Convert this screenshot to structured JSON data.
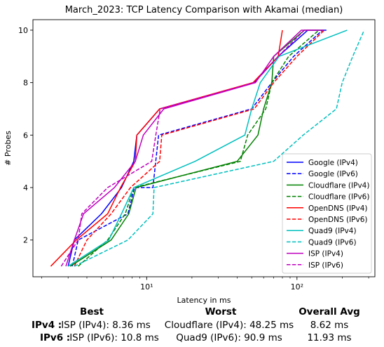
{
  "chart_data": {
    "type": "line",
    "title": "March_2023: TCP Latency Comparison with Akamai (median)",
    "xlabel": "Latency in ms",
    "ylabel": "# Probes",
    "xscale": "log",
    "xlim": [
      1.75,
      330
    ],
    "ylim": [
      0.6,
      10.4
    ],
    "xticks": [
      10,
      100
    ],
    "xtick_labels": [
      "10¹",
      "10²"
    ],
    "yticks": [
      2,
      4,
      6,
      8,
      10
    ],
    "ytick_labels": [
      "2",
      "4",
      "6",
      "8",
      "10"
    ],
    "grid": false,
    "legend_position": "lower right",
    "series": [
      {
        "name": "Google (IPv4)",
        "color": "#0000ff",
        "dash": "solid",
        "points": [
          [
            3.0,
            1
          ],
          [
            3.3,
            2
          ],
          [
            5.0,
            3
          ],
          [
            6.8,
            4
          ],
          [
            8.2,
            5
          ],
          [
            8.6,
            6
          ],
          [
            12.2,
            7
          ],
          [
            52,
            8
          ],
          [
            75,
            9
          ],
          [
            118,
            10
          ],
          [
            157,
            10
          ]
        ]
      },
      {
        "name": "Google (IPv6)",
        "color": "#0000ff",
        "dash": "dashed",
        "points": [
          [
            3.2,
            1
          ],
          [
            3.5,
            2
          ],
          [
            7.5,
            3
          ],
          [
            8.3,
            4
          ],
          [
            11,
            4
          ],
          [
            12,
            6
          ],
          [
            50,
            7
          ],
          [
            68,
            8
          ],
          [
            95,
            9
          ],
          [
            148,
            10
          ]
        ]
      },
      {
        "name": "Cloudflare (IPv4)",
        "color": "#008000",
        "dash": "solid",
        "points": [
          [
            3.1,
            1
          ],
          [
            5.8,
            2
          ],
          [
            7.6,
            3
          ],
          [
            8.5,
            4
          ],
          [
            40,
            5
          ],
          [
            55,
            6
          ],
          [
            60,
            7
          ],
          [
            68,
            8
          ],
          [
            70,
            9
          ],
          [
            112,
            10
          ],
          [
            150,
            10
          ]
        ]
      },
      {
        "name": "Cloudflare (IPv6)",
        "color": "#008000",
        "dash": "dashed",
        "points": [
          [
            3.5,
            1
          ],
          [
            5.5,
            2
          ],
          [
            7.2,
            3
          ],
          [
            8.2,
            4
          ],
          [
            42,
            5
          ],
          [
            47,
            6
          ],
          [
            62,
            7
          ],
          [
            68,
            8
          ],
          [
            88,
            9
          ],
          [
            140,
            10
          ]
        ]
      },
      {
        "name": "OpenDNS (IPv4)",
        "color": "#ff0000",
        "dash": "solid",
        "points": [
          [
            2.3,
            1
          ],
          [
            3.4,
            2
          ],
          [
            5.5,
            3
          ],
          [
            6.7,
            4
          ],
          [
            8.4,
            5
          ],
          [
            8.6,
            6
          ],
          [
            12.2,
            7
          ],
          [
            51,
            8
          ],
          [
            75,
            9
          ],
          [
            80,
            10
          ]
        ]
      },
      {
        "name": "OpenDNS (IPv6)",
        "color": "#ff0000",
        "dash": "dashed",
        "points": [
          [
            3.3,
            1
          ],
          [
            4.0,
            2
          ],
          [
            5.8,
            3
          ],
          [
            7.8,
            4
          ],
          [
            12.2,
            5
          ],
          [
            12.6,
            6
          ],
          [
            52,
            7
          ],
          [
            70,
            8
          ],
          [
            100,
            9
          ],
          [
            152,
            10
          ]
        ]
      },
      {
        "name": "Quad9 (IPv4)",
        "color": "#00bfbf",
        "dash": "solid",
        "points": [
          [
            3.0,
            1
          ],
          [
            5.6,
            2
          ],
          [
            6.8,
            3
          ],
          [
            8.2,
            4
          ],
          [
            21,
            5
          ],
          [
            45,
            6
          ],
          [
            50,
            7
          ],
          [
            57,
            8
          ],
          [
            76,
            9
          ],
          [
            216,
            10
          ]
        ]
      },
      {
        "name": "Quad9 (IPv6)",
        "color": "#00bfbf",
        "dash": "dashed",
        "points": [
          [
            3.3,
            1
          ],
          [
            7.5,
            2
          ],
          [
            11,
            3
          ],
          [
            11.2,
            4
          ],
          [
            70,
            5
          ],
          [
            110,
            6
          ],
          [
            183,
            7
          ],
          [
            200,
            8
          ],
          [
            235,
            9
          ],
          [
            280,
            10
          ]
        ]
      },
      {
        "name": "ISP (IPv4)",
        "color": "#bf00bf",
        "dash": "solid",
        "points": [
          [
            2.9,
            1
          ],
          [
            3.3,
            2
          ],
          [
            3.8,
            3
          ],
          [
            6.1,
            4
          ],
          [
            8.4,
            5
          ],
          [
            9.5,
            6
          ],
          [
            13,
            7
          ],
          [
            53,
            8
          ],
          [
            70,
            9
          ],
          [
            107,
            10
          ],
          [
            150,
            10
          ]
        ]
      },
      {
        "name": "ISP (IPv6)",
        "color": "#bf00bf",
        "dash": "dashed",
        "points": [
          [
            2.7,
            1
          ],
          [
            3.5,
            2
          ],
          [
            3.7,
            3
          ],
          [
            5.5,
            4
          ],
          [
            10.8,
            5
          ],
          [
            11.5,
            6
          ],
          [
            12.3,
            7
          ],
          [
            52,
            8
          ],
          [
            75,
            9
          ],
          [
            112,
            10
          ],
          [
            135,
            10
          ]
        ]
      }
    ]
  },
  "summary": {
    "headers": {
      "best": "Best",
      "worst": "Worst",
      "overall": "Overall Avg"
    },
    "rows": [
      {
        "label": "IPv4 :",
        "best": "ISP (IPv4): 8.36 ms",
        "worst": "Cloudflare (IPv4): 48.25 ms",
        "overall": "8.62 ms"
      },
      {
        "label": "IPv6 :",
        "best": "ISP (IPv6): 10.8 ms",
        "worst": "Quad9 (IPv6): 90.9 ms",
        "overall": "11.93 ms"
      }
    ]
  }
}
